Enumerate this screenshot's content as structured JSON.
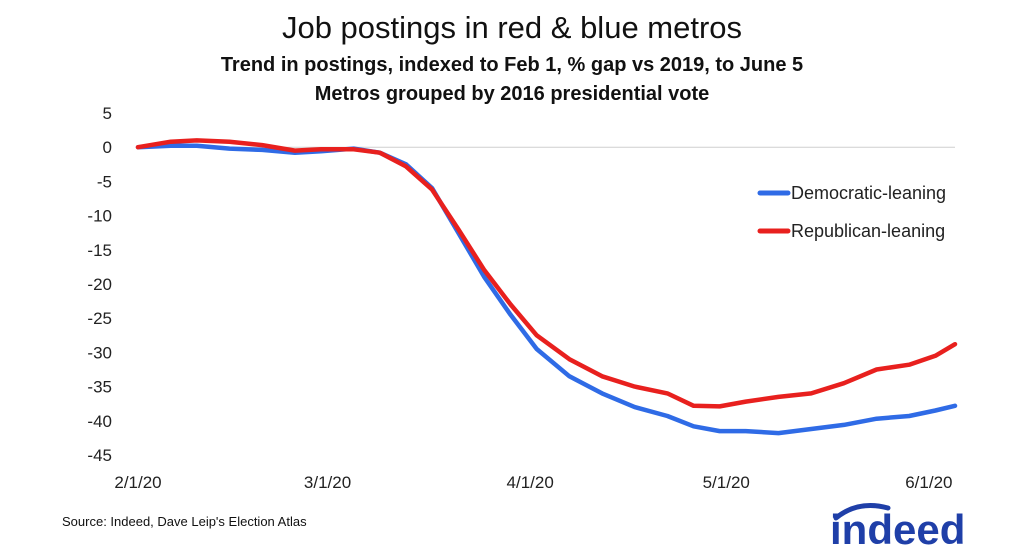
{
  "chart_data": {
    "type": "line",
    "title": "Job postings in red & blue metros",
    "subtitle": "Trend in postings, indexed to Feb 1, % gap vs 2019, to June 5",
    "subtitle2": "Metros grouped by 2016 presidential vote",
    "ylim": [
      -45,
      5
    ],
    "yticks": [
      "5",
      "0",
      "-5",
      "-10",
      "-15",
      "-20",
      "-25",
      "-30",
      "-35",
      "-40",
      "-45"
    ],
    "xticks": [
      "2/1/20",
      "3/1/20",
      "4/1/20",
      "5/1/20",
      "6/1/20"
    ],
    "legend_position": "right",
    "series": [
      {
        "name": "Democratic-leaning",
        "color": "#2f6be6",
        "x": [
          "2020-02-01",
          "2020-02-06",
          "2020-02-10",
          "2020-02-15",
          "2020-02-20",
          "2020-02-25",
          "2020-02-29",
          "2020-03-05",
          "2020-03-09",
          "2020-03-13",
          "2020-03-17",
          "2020-03-21",
          "2020-03-25",
          "2020-03-29",
          "2020-04-02",
          "2020-04-07",
          "2020-04-12",
          "2020-04-17",
          "2020-04-22",
          "2020-04-26",
          "2020-04-30",
          "2020-05-04",
          "2020-05-09",
          "2020-05-14",
          "2020-05-19",
          "2020-05-24",
          "2020-05-29",
          "2020-06-02",
          "2020-06-05"
        ],
        "values": [
          0,
          0.2,
          0.2,
          -0.2,
          -0.4,
          -0.8,
          -0.6,
          -0.2,
          -0.8,
          -2.5,
          -6,
          -12.5,
          -19,
          -24.5,
          -29.5,
          -33.5,
          -36,
          -38,
          -39.3,
          -40.8,
          -41.5,
          -41.5,
          -41.8,
          -41.2,
          -40.6,
          -39.7,
          -39.3,
          -38.5,
          -37.8
        ]
      },
      {
        "name": "Republican-leaning",
        "color": "#e8201e",
        "x": [
          "2020-02-01",
          "2020-02-06",
          "2020-02-10",
          "2020-02-15",
          "2020-02-20",
          "2020-02-25",
          "2020-02-29",
          "2020-03-05",
          "2020-03-09",
          "2020-03-13",
          "2020-03-17",
          "2020-03-21",
          "2020-03-25",
          "2020-03-29",
          "2020-04-02",
          "2020-04-07",
          "2020-04-12",
          "2020-04-17",
          "2020-04-22",
          "2020-04-26",
          "2020-04-30",
          "2020-05-04",
          "2020-05-09",
          "2020-05-14",
          "2020-05-19",
          "2020-05-24",
          "2020-05-29",
          "2020-06-02",
          "2020-06-05"
        ],
        "values": [
          0,
          0.8,
          1.0,
          0.8,
          0.3,
          -0.5,
          -0.3,
          -0.3,
          -0.8,
          -2.8,
          -6.2,
          -12,
          -18,
          -23,
          -27.5,
          -31,
          -33.5,
          -35,
          -36,
          -37.8,
          -37.9,
          -37.2,
          -36.5,
          -36,
          -34.5,
          -32.5,
          -31.8,
          -30.5,
          -28.8
        ]
      }
    ]
  },
  "source": "Source: Indeed, Dave Leip's Election Atlas",
  "logo_text": "indeed",
  "logo_color": "#1f3fa8"
}
